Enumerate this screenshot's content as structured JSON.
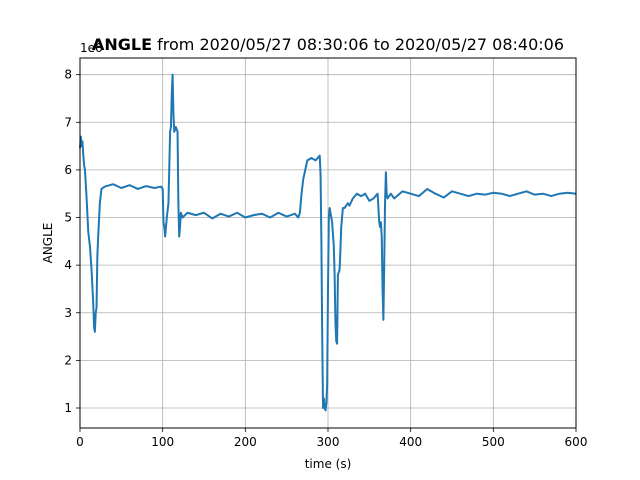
{
  "chart_data": {
    "type": "line",
    "title_bold": "ANGLE",
    "title_rest": " from 2020/05/27 08:30:06 to 2020/05/27 08:40:06",
    "xlabel": "time (s)",
    "ylabel": "ANGLE",
    "y_offset_label": "1e6",
    "xlim": [
      0,
      600
    ],
    "ylim": [
      0.58,
      8.35
    ],
    "x_ticks": [
      0,
      100,
      200,
      300,
      400,
      500,
      600
    ],
    "x_tick_labels": [
      "0",
      "100",
      "200",
      "300",
      "400",
      "500",
      "600"
    ],
    "y_ticks": [
      1,
      2,
      3,
      4,
      5,
      6,
      7,
      8
    ],
    "y_tick_labels": [
      "1",
      "2",
      "3",
      "4",
      "5",
      "6",
      "7",
      "8"
    ],
    "grid": true,
    "series_color": "#1f77b4",
    "series": [
      {
        "x": [
          0,
          1,
          2,
          3,
          4,
          5,
          6,
          8,
          10,
          12,
          14,
          16,
          17,
          18,
          19,
          20,
          21,
          22,
          24,
          26,
          30,
          40,
          50,
          60,
          70,
          80,
          90,
          98,
          100,
          101,
          102,
          103,
          105,
          107,
          109,
          110,
          111,
          112,
          113,
          114,
          116,
          118,
          119,
          120,
          121,
          122,
          124,
          130,
          140,
          150,
          160,
          170,
          180,
          190,
          200,
          210,
          220,
          230,
          240,
          250,
          260,
          264,
          266,
          268,
          270,
          275,
          280,
          285,
          290,
          291,
          292,
          293,
          294,
          295,
          296,
          297,
          298,
          299,
          300,
          301,
          302,
          303,
          305,
          307,
          308,
          309,
          310,
          311,
          312,
          314,
          315,
          316,
          317,
          318,
          320,
          322,
          324,
          326,
          330,
          335,
          340,
          345,
          350,
          355,
          360,
          362,
          363,
          364,
          365,
          366,
          367,
          368,
          369,
          370,
          371,
          372,
          374,
          376,
          380,
          390,
          400,
          410,
          420,
          430,
          440,
          450,
          460,
          470,
          480,
          490,
          500,
          510,
          520,
          530,
          540,
          550,
          560,
          570,
          580,
          590,
          600
        ],
        "values": [
          6.45,
          6.7,
          6.5,
          6.6,
          6.3,
          6.1,
          6.0,
          5.4,
          4.7,
          4.4,
          3.9,
          3.2,
          2.7,
          2.6,
          3.0,
          3.1,
          4.2,
          4.6,
          5.3,
          5.6,
          5.65,
          5.7,
          5.62,
          5.68,
          5.6,
          5.66,
          5.62,
          5.65,
          5.6,
          4.9,
          4.8,
          4.6,
          5.0,
          5.3,
          6.8,
          6.9,
          7.6,
          8.0,
          7.2,
          6.8,
          6.9,
          6.8,
          5.3,
          4.6,
          4.8,
          5.1,
          5.0,
          5.1,
          5.05,
          5.1,
          4.98,
          5.08,
          5.02,
          5.1,
          5.0,
          5.05,
          5.08,
          5.0,
          5.1,
          5.02,
          5.08,
          5.0,
          5.1,
          5.5,
          5.8,
          6.2,
          6.25,
          6.2,
          6.3,
          5.9,
          4.5,
          2.5,
          1.0,
          1.2,
          1.0,
          0.95,
          1.1,
          1.5,
          3.5,
          5.0,
          5.2,
          5.1,
          4.9,
          4.4,
          3.8,
          2.8,
          2.4,
          2.35,
          3.8,
          3.9,
          4.3,
          4.8,
          5.0,
          5.2,
          5.2,
          5.25,
          5.3,
          5.25,
          5.4,
          5.5,
          5.45,
          5.5,
          5.35,
          5.4,
          5.5,
          4.9,
          4.8,
          4.9,
          4.6,
          3.5,
          2.85,
          4.0,
          5.3,
          5.95,
          5.5,
          5.4,
          5.45,
          5.5,
          5.4,
          5.55,
          5.5,
          5.45,
          5.6,
          5.5,
          5.42,
          5.55,
          5.5,
          5.45,
          5.5,
          5.48,
          5.52,
          5.5,
          5.45,
          5.5,
          5.55,
          5.48,
          5.5,
          5.45,
          5.5,
          5.52,
          5.5
        ]
      }
    ]
  }
}
